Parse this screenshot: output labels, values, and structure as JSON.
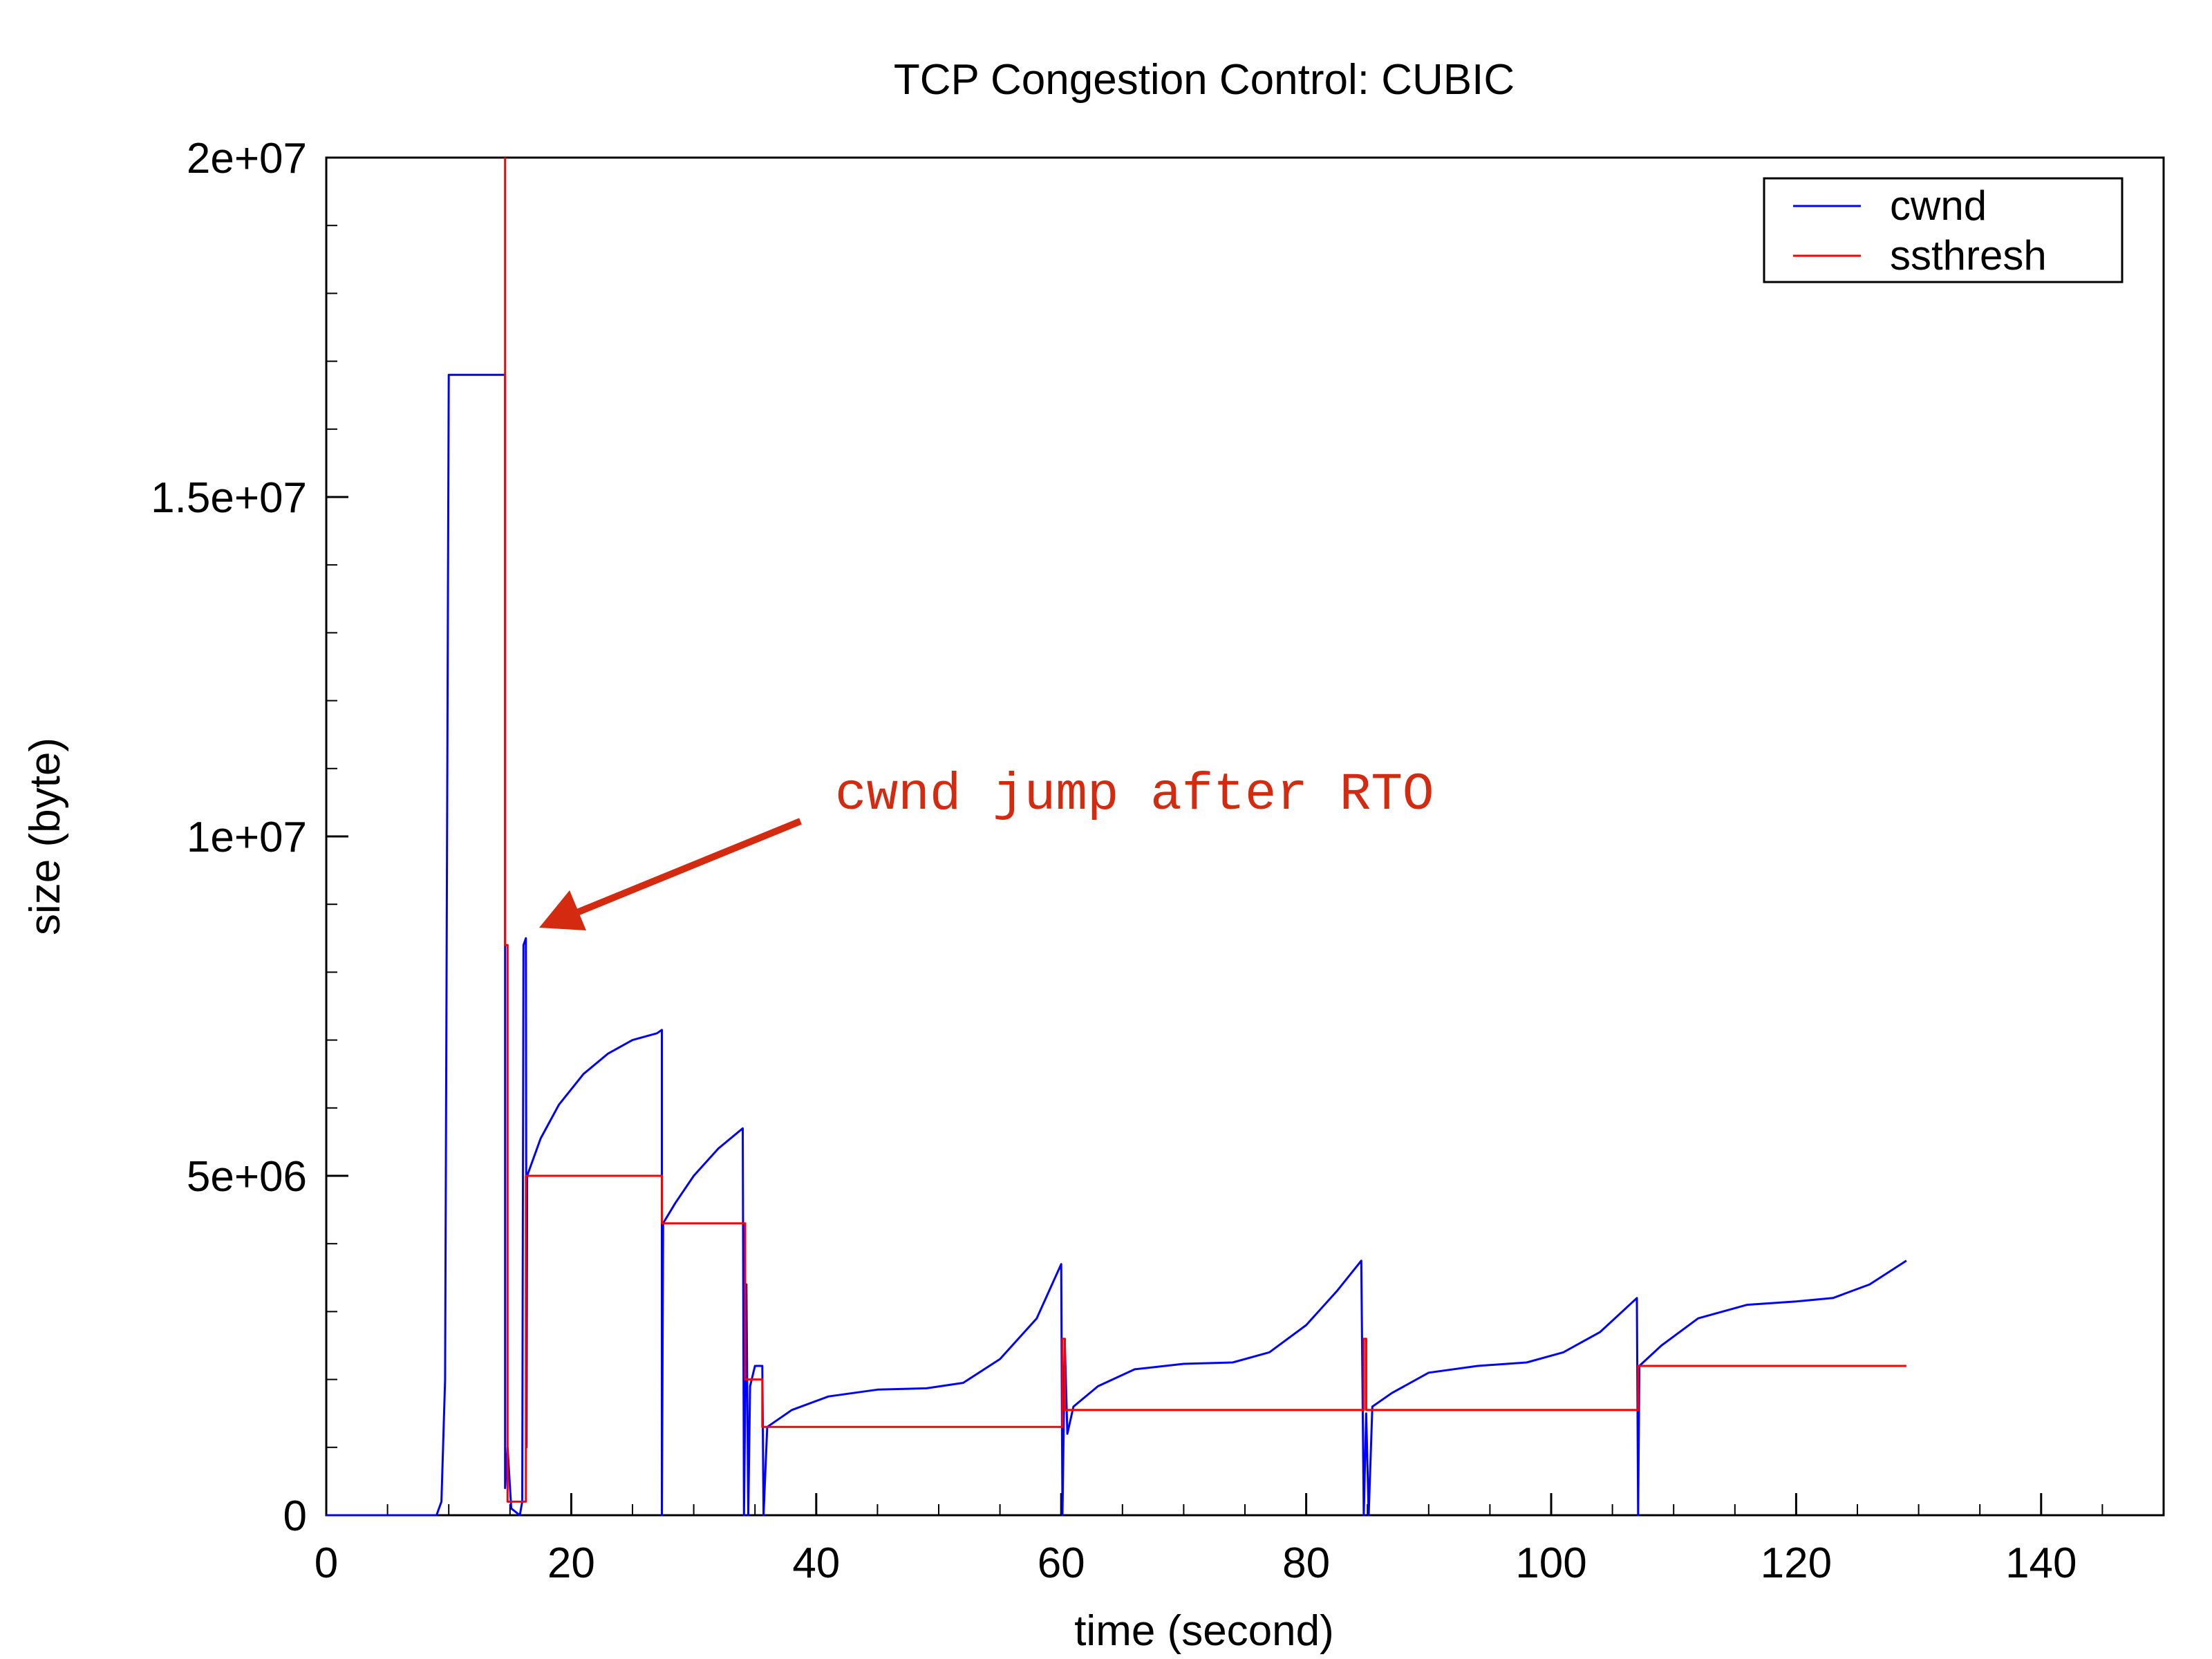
{
  "chart_data": {
    "type": "line",
    "title": "TCP Congestion Control: CUBIC",
    "xlabel": "time (second)",
    "ylabel": "size (byte)",
    "xlim": [
      0,
      150
    ],
    "ylim": [
      0,
      20000000
    ],
    "x_ticks": [
      0,
      20,
      40,
      60,
      80,
      100,
      120,
      140
    ],
    "x_tick_labels": [
      "0",
      "20",
      "40",
      "60",
      "80",
      "100",
      "120",
      "140"
    ],
    "y_ticks": [
      0,
      5000000,
      10000000,
      15000000,
      20000000
    ],
    "y_tick_labels": [
      "0",
      "5e+06",
      "1e+07",
      "1.5e+07",
      "2e+07"
    ],
    "grid": false,
    "legend_position": "top-right",
    "series": [
      {
        "name": "cwnd",
        "color": "#0000ff",
        "points": [
          [
            0,
            0
          ],
          [
            9.0,
            0
          ],
          [
            9.4,
            200000
          ],
          [
            9.7,
            2000000
          ],
          [
            10.0,
            16800000
          ],
          [
            14.6,
            16800000
          ],
          [
            14.6,
            400000
          ],
          [
            14.8,
            1000000
          ],
          [
            15.1,
            100000
          ],
          [
            15.8,
            0
          ],
          [
            16.0,
            200000
          ],
          [
            16.1,
            8400000
          ],
          [
            16.3,
            8500000
          ],
          [
            16.35,
            1000000
          ],
          [
            16.4,
            5000000
          ],
          [
            17.5,
            5550000
          ],
          [
            19.0,
            6050000
          ],
          [
            21.0,
            6500000
          ],
          [
            23.0,
            6800000
          ],
          [
            25.0,
            7000000
          ],
          [
            27.0,
            7100000
          ],
          [
            27.4,
            7150000
          ],
          [
            27.4,
            0
          ],
          [
            27.5,
            4300000
          ],
          [
            28.5,
            4600000
          ],
          [
            30.0,
            5000000
          ],
          [
            32.0,
            5400000
          ],
          [
            34.0,
            5700000
          ],
          [
            34.1,
            0
          ],
          [
            34.3,
            3400000
          ],
          [
            34.45,
            0
          ],
          [
            34.6,
            1900000
          ],
          [
            35.0,
            2200000
          ],
          [
            35.6,
            2200000
          ],
          [
            35.7,
            0
          ],
          [
            36.0,
            1300000
          ],
          [
            38.0,
            1550000
          ],
          [
            41.0,
            1750000
          ],
          [
            45.0,
            1850000
          ],
          [
            49.0,
            1870000
          ],
          [
            52.0,
            1950000
          ],
          [
            55.0,
            2300000
          ],
          [
            58.0,
            2900000
          ],
          [
            60.0,
            3700000
          ],
          [
            60.1,
            0
          ],
          [
            60.3,
            2500000
          ],
          [
            60.5,
            1200000
          ],
          [
            61.0,
            1600000
          ],
          [
            63.0,
            1900000
          ],
          [
            66.0,
            2150000
          ],
          [
            70.0,
            2230000
          ],
          [
            74.0,
            2250000
          ],
          [
            77.0,
            2400000
          ],
          [
            80.0,
            2800000
          ],
          [
            82.5,
            3300000
          ],
          [
            84.5,
            3750000
          ],
          [
            84.7,
            0
          ],
          [
            84.9,
            1500000
          ],
          [
            85.1,
            0
          ],
          [
            85.4,
            1600000
          ],
          [
            87.0,
            1800000
          ],
          [
            90.0,
            2100000
          ],
          [
            94.0,
            2200000
          ],
          [
            98.0,
            2250000
          ],
          [
            101.0,
            2400000
          ],
          [
            104.0,
            2700000
          ],
          [
            107.0,
            3200000
          ],
          [
            107.1,
            0
          ],
          [
            107.2,
            2200000
          ],
          [
            109.0,
            2500000
          ],
          [
            112.0,
            2900000
          ],
          [
            116.0,
            3100000
          ],
          [
            120.0,
            3150000
          ],
          [
            123.0,
            3200000
          ],
          [
            126.0,
            3400000
          ],
          [
            129.0,
            3750000
          ]
        ]
      },
      {
        "name": "ssthresh",
        "color": "#ff0000",
        "points": [
          [
            14.6,
            20000000
          ],
          [
            14.6,
            8400000
          ],
          [
            14.8,
            8400000
          ],
          [
            14.8,
            200000
          ],
          [
            16.3,
            200000
          ],
          [
            16.3,
            5000000
          ],
          [
            27.4,
            5000000
          ],
          [
            27.4,
            4300000
          ],
          [
            34.2,
            4300000
          ],
          [
            34.2,
            2000000
          ],
          [
            35.6,
            2000000
          ],
          [
            35.6,
            1300000
          ],
          [
            60.1,
            1300000
          ],
          [
            60.1,
            2600000
          ],
          [
            60.3,
            2600000
          ],
          [
            60.3,
            1550000
          ],
          [
            84.7,
            1550000
          ],
          [
            84.7,
            2600000
          ],
          [
            84.9,
            2600000
          ],
          [
            84.9,
            1550000
          ],
          [
            107.1,
            1550000
          ],
          [
            107.1,
            2200000
          ],
          [
            129.0,
            2200000
          ]
        ]
      }
    ],
    "annotation": {
      "text": "cwnd jump after RTO",
      "color": "#d42a10",
      "arrow_to": [
        17.5,
        8600000
      ]
    }
  }
}
